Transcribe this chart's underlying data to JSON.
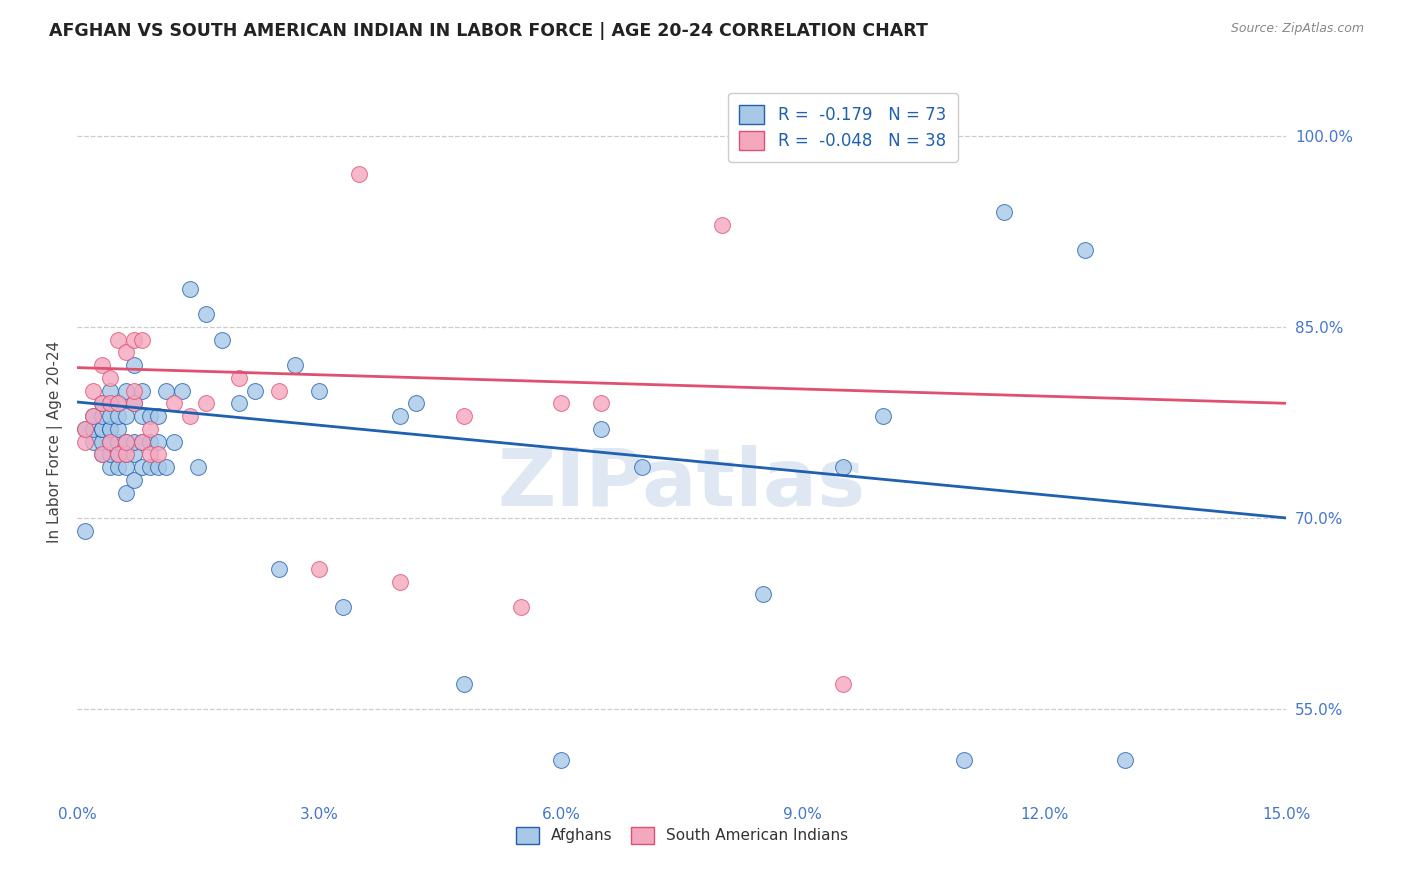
{
  "title": "AFGHAN VS SOUTH AMERICAN INDIAN IN LABOR FORCE | AGE 20-24 CORRELATION CHART",
  "source": "Source: ZipAtlas.com",
  "ylabel": "In Labor Force | Age 20-24",
  "ytick_labels": [
    "55.0%",
    "70.0%",
    "85.0%",
    "100.0%"
  ],
  "ytick_values": [
    0.55,
    0.7,
    0.85,
    1.0
  ],
  "xlim": [
    0.0,
    0.15
  ],
  "ylim": [
    0.48,
    1.04
  ],
  "xtick_values": [
    0.0,
    0.03,
    0.06,
    0.09,
    0.12,
    0.15
  ],
  "xtick_labels": [
    "0.0%",
    "3.0%",
    "6.0%",
    "9.0%",
    "12.0%",
    "15.0%"
  ],
  "color_afghan": "#a8c8e8",
  "color_sa_indian": "#f4a8c0",
  "trendline_afghan_color": "#2060b0",
  "trendline_sa_color": "#e05070",
  "watermark": "ZIPatlas",
  "trendline_afg_y0": 0.791,
  "trendline_afg_y1": 0.7,
  "trendline_sa_y0": 0.818,
  "trendline_sa_y1": 0.79,
  "afghans_x": [
    0.001,
    0.001,
    0.002,
    0.002,
    0.002,
    0.003,
    0.003,
    0.003,
    0.003,
    0.003,
    0.003,
    0.004,
    0.004,
    0.004,
    0.004,
    0.004,
    0.004,
    0.004,
    0.004,
    0.005,
    0.005,
    0.005,
    0.005,
    0.005,
    0.005,
    0.006,
    0.006,
    0.006,
    0.006,
    0.006,
    0.006,
    0.007,
    0.007,
    0.007,
    0.007,
    0.007,
    0.008,
    0.008,
    0.008,
    0.008,
    0.009,
    0.009,
    0.009,
    0.01,
    0.01,
    0.01,
    0.011,
    0.011,
    0.012,
    0.013,
    0.014,
    0.015,
    0.016,
    0.018,
    0.02,
    0.022,
    0.025,
    0.027,
    0.03,
    0.033,
    0.04,
    0.042,
    0.048,
    0.06,
    0.065,
    0.07,
    0.085,
    0.095,
    0.1,
    0.11,
    0.115,
    0.125,
    0.13
  ],
  "afghans_y": [
    0.77,
    0.69,
    0.76,
    0.77,
    0.78,
    0.75,
    0.76,
    0.77,
    0.77,
    0.78,
    0.79,
    0.74,
    0.75,
    0.76,
    0.77,
    0.77,
    0.78,
    0.79,
    0.8,
    0.74,
    0.75,
    0.76,
    0.77,
    0.78,
    0.79,
    0.72,
    0.74,
    0.75,
    0.76,
    0.78,
    0.8,
    0.73,
    0.75,
    0.76,
    0.79,
    0.82,
    0.74,
    0.76,
    0.78,
    0.8,
    0.74,
    0.76,
    0.78,
    0.74,
    0.76,
    0.78,
    0.74,
    0.8,
    0.76,
    0.8,
    0.88,
    0.74,
    0.86,
    0.84,
    0.79,
    0.8,
    0.66,
    0.82,
    0.8,
    0.63,
    0.78,
    0.79,
    0.57,
    0.51,
    0.77,
    0.74,
    0.64,
    0.74,
    0.78,
    0.51,
    0.94,
    0.91,
    0.51
  ],
  "sa_indians_x": [
    0.001,
    0.001,
    0.002,
    0.002,
    0.003,
    0.003,
    0.003,
    0.004,
    0.004,
    0.004,
    0.005,
    0.005,
    0.005,
    0.006,
    0.006,
    0.006,
    0.007,
    0.007,
    0.007,
    0.008,
    0.008,
    0.009,
    0.009,
    0.01,
    0.012,
    0.014,
    0.016,
    0.02,
    0.025,
    0.03,
    0.035,
    0.04,
    0.048,
    0.055,
    0.06,
    0.065,
    0.08,
    0.095
  ],
  "sa_indians_y": [
    0.76,
    0.77,
    0.78,
    0.8,
    0.75,
    0.79,
    0.82,
    0.76,
    0.79,
    0.81,
    0.75,
    0.79,
    0.84,
    0.75,
    0.76,
    0.83,
    0.79,
    0.84,
    0.8,
    0.76,
    0.84,
    0.75,
    0.77,
    0.75,
    0.79,
    0.78,
    0.79,
    0.81,
    0.8,
    0.66,
    0.97,
    0.65,
    0.78,
    0.63,
    0.79,
    0.79,
    0.93,
    0.57
  ]
}
